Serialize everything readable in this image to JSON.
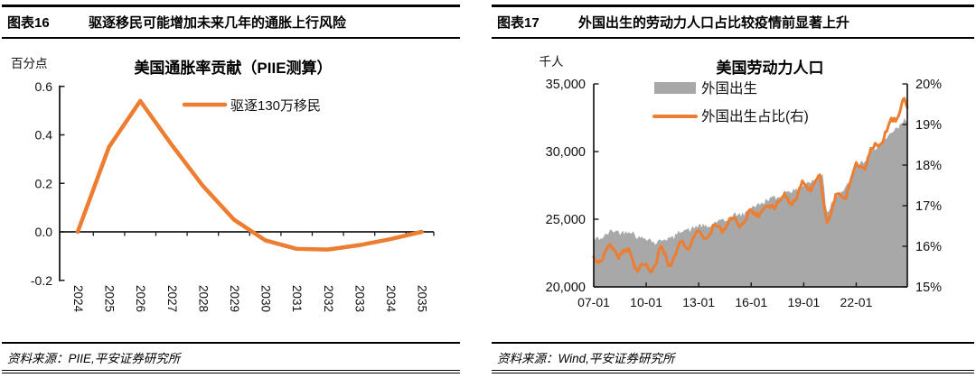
{
  "colors": {
    "orange": "#ED7D31",
    "gray": "#A8A8A8",
    "axis": "#1a1a1a",
    "text": "#111111"
  },
  "panels": {
    "left": {
      "figure_label": "图表16",
      "figure_title": "驱逐移民可能增加未来几年的通胀上行风险",
      "source": "资料来源：PIIE,平安证券研究所"
    },
    "right": {
      "figure_label": "图表17",
      "figure_title": "外国出生的劳动力人口占比较疫情前显著上升",
      "source": "资料来源：Wind,平安证券研究所"
    }
  },
  "chart_data": [
    {
      "type": "line",
      "title": "美国通胀率贡献（PIIE测算）",
      "unit_label": "百分点",
      "legend": [
        {
          "label": "驱逐130万移民",
          "swatch": "line"
        }
      ],
      "categories": [
        "2024",
        "2025",
        "2026",
        "2027",
        "2028",
        "2029",
        "2030",
        "2031",
        "2032",
        "2033",
        "2034",
        "2035"
      ],
      "values": [
        0.0,
        0.35,
        0.54,
        0.36,
        0.19,
        0.05,
        -0.035,
        -0.07,
        -0.073,
        -0.055,
        -0.03,
        0.0
      ],
      "ylim": [
        -0.2,
        0.6
      ],
      "y_ticks": [
        {
          "v": 0.6,
          "label": "0.6"
        },
        {
          "v": 0.4,
          "label": "0.4"
        },
        {
          "v": 0.2,
          "label": "0.2"
        },
        {
          "v": 0.0,
          "label": "0.0"
        },
        {
          "v": -0.2,
          "label": "-0.2"
        }
      ],
      "grid": false,
      "legend_position": "top-right-inside"
    },
    {
      "type": "area+line",
      "title": "美国劳动力人口",
      "unit_label": "千人",
      "x_start": 2007.0,
      "x_end": 2024.92,
      "x_ticks": [
        {
          "t": 2007,
          "label": "07-01"
        },
        {
          "t": 2010,
          "label": "10-01"
        },
        {
          "t": 2013,
          "label": "13-01"
        },
        {
          "t": 2016,
          "label": "16-01"
        },
        {
          "t": 2019,
          "label": "19-01"
        },
        {
          "t": 2022,
          "label": "22-01"
        }
      ],
      "left_axis": {
        "lim": [
          20000,
          35000
        ],
        "ticks": [
          {
            "v": 35000,
            "label": "35,000"
          },
          {
            "v": 30000,
            "label": "30,000"
          },
          {
            "v": 25000,
            "label": "25,000"
          },
          {
            "v": 20000,
            "label": "20,000"
          }
        ]
      },
      "right_axis": {
        "lim": [
          15,
          20
        ],
        "ticks": [
          {
            "v": 20,
            "label": "20%"
          },
          {
            "v": 19,
            "label": "19%"
          },
          {
            "v": 18,
            "label": "18%"
          },
          {
            "v": 17,
            "label": "17%"
          },
          {
            "v": 16,
            "label": "16%"
          },
          {
            "v": 15,
            "label": "15%"
          }
        ]
      },
      "legend": [
        {
          "label": "外国出生",
          "swatch": "area"
        },
        {
          "label": "外国出生占比(右)",
          "swatch": "line"
        }
      ],
      "series": [
        {
          "name": "外国出生",
          "axis": "left",
          "style": "area",
          "unit": "千人",
          "noise_amplitude": 200,
          "seasonal_amplitude": 110,
          "anchors": [
            [
              2007.0,
              23350
            ],
            [
              2007.7,
              23900
            ],
            [
              2008.4,
              24150
            ],
            [
              2009.2,
              24000
            ],
            [
              2009.8,
              23600
            ],
            [
              2010.5,
              23350
            ],
            [
              2011.2,
              23500
            ],
            [
              2012.0,
              24100
            ],
            [
              2012.7,
              24400
            ],
            [
              2013.5,
              24500
            ],
            [
              2014.2,
              24800
            ],
            [
              2015.0,
              25200
            ],
            [
              2015.8,
              25600
            ],
            [
              2016.5,
              26200
            ],
            [
              2017.2,
              26500
            ],
            [
              2018.0,
              27000
            ],
            [
              2018.8,
              27300
            ],
            [
              2019.5,
              27900
            ],
            [
              2020.1,
              28300
            ],
            [
              2020.3,
              25400
            ],
            [
              2020.7,
              26600
            ],
            [
              2021.3,
              27100
            ],
            [
              2022.0,
              28900
            ],
            [
              2022.7,
              29600
            ],
            [
              2023.3,
              30500
            ],
            [
              2023.9,
              31100
            ],
            [
              2024.4,
              31800
            ],
            [
              2024.75,
              32400
            ],
            [
              2024.92,
              32300
            ]
          ]
        },
        {
          "name": "外国出生占比(右)",
          "axis": "right",
          "style": "line",
          "unit": "%",
          "noise_amplitude": 0.06,
          "seasonal_amplitude": 0.13,
          "anchors": [
            [
              2007.0,
              15.6
            ],
            [
              2007.6,
              15.85
            ],
            [
              2008.2,
              15.9
            ],
            [
              2009.0,
              15.8
            ],
            [
              2009.5,
              15.55
            ],
            [
              2010.2,
              15.4
            ],
            [
              2010.8,
              15.85
            ],
            [
              2011.3,
              15.6
            ],
            [
              2012.0,
              16.0
            ],
            [
              2012.8,
              16.2
            ],
            [
              2013.5,
              16.3
            ],
            [
              2014.3,
              16.5
            ],
            [
              2015.0,
              16.6
            ],
            [
              2015.7,
              16.65
            ],
            [
              2016.4,
              16.9
            ],
            [
              2017.0,
              16.9
            ],
            [
              2017.6,
              17.2
            ],
            [
              2018.2,
              17.1
            ],
            [
              2018.8,
              17.4
            ],
            [
              2019.5,
              17.55
            ],
            [
              2019.9,
              17.7
            ],
            [
              2020.3,
              16.7
            ],
            [
              2020.8,
              17.1
            ],
            [
              2021.4,
              17.35
            ],
            [
              2022.0,
              17.9
            ],
            [
              2022.6,
              18.1
            ],
            [
              2023.2,
              18.5
            ],
            [
              2023.8,
              18.85
            ],
            [
              2024.3,
              19.2
            ],
            [
              2024.6,
              19.55
            ],
            [
              2024.75,
              19.6
            ],
            [
              2024.92,
              19.3
            ]
          ]
        }
      ],
      "grid": false,
      "legend_position": "top-center-inside"
    }
  ]
}
